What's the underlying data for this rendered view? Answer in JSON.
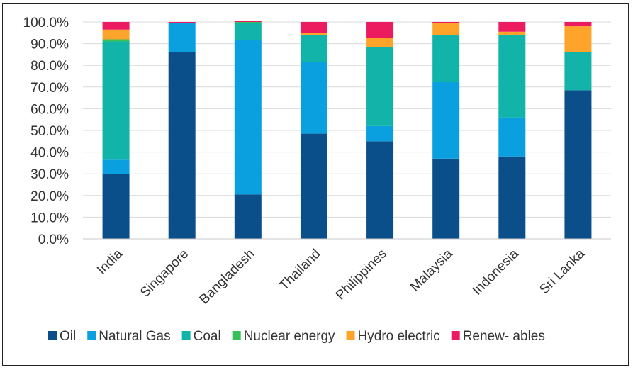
{
  "chart_data": {
    "type": "bar",
    "stacked": true,
    "categories": [
      "India",
      "Singapore",
      "Bangladesh",
      "Thailand",
      "Philippines",
      "Malaysia",
      "Indonesia",
      "Sri Lanka"
    ],
    "ylim": [
      0,
      100
    ],
    "yticks": [
      "0.0%",
      "10.0%",
      "20.0%",
      "30.0%",
      "40.0%",
      "50.0%",
      "60.0%",
      "70.0%",
      "80.0%",
      "90.0%",
      "100.0%"
    ],
    "grid": true,
    "legend_position": "bottom",
    "series": [
      {
        "name": "Oil",
        "color": "#0b4f8a",
        "values": [
          30,
          86,
          20.5,
          48.5,
          45,
          37,
          38,
          68.5
        ]
      },
      {
        "name": "Natural Gas",
        "color": "#0aa0e0",
        "values": [
          6.5,
          13.5,
          71,
          33,
          7,
          35.5,
          18,
          0
        ]
      },
      {
        "name": "Coal",
        "color": "#12b3a8",
        "values": [
          54.5,
          0,
          8,
          12.5,
          36.5,
          21.5,
          38,
          17.5
        ]
      },
      {
        "name": "Nuclear energy",
        "color": "#35c05a",
        "values": [
          1,
          0,
          0.5,
          0,
          0,
          0,
          0,
          0
        ]
      },
      {
        "name": "Hydro electric",
        "color": "#ffa42a",
        "values": [
          4.5,
          0,
          0,
          1,
          4,
          5.5,
          1.5,
          12
        ]
      },
      {
        "name": "Renew- ables",
        "color": "#ec1a5e",
        "values": [
          3.5,
          0.5,
          0.5,
          5,
          7.5,
          0.5,
          4.5,
          2
        ]
      }
    ]
  }
}
